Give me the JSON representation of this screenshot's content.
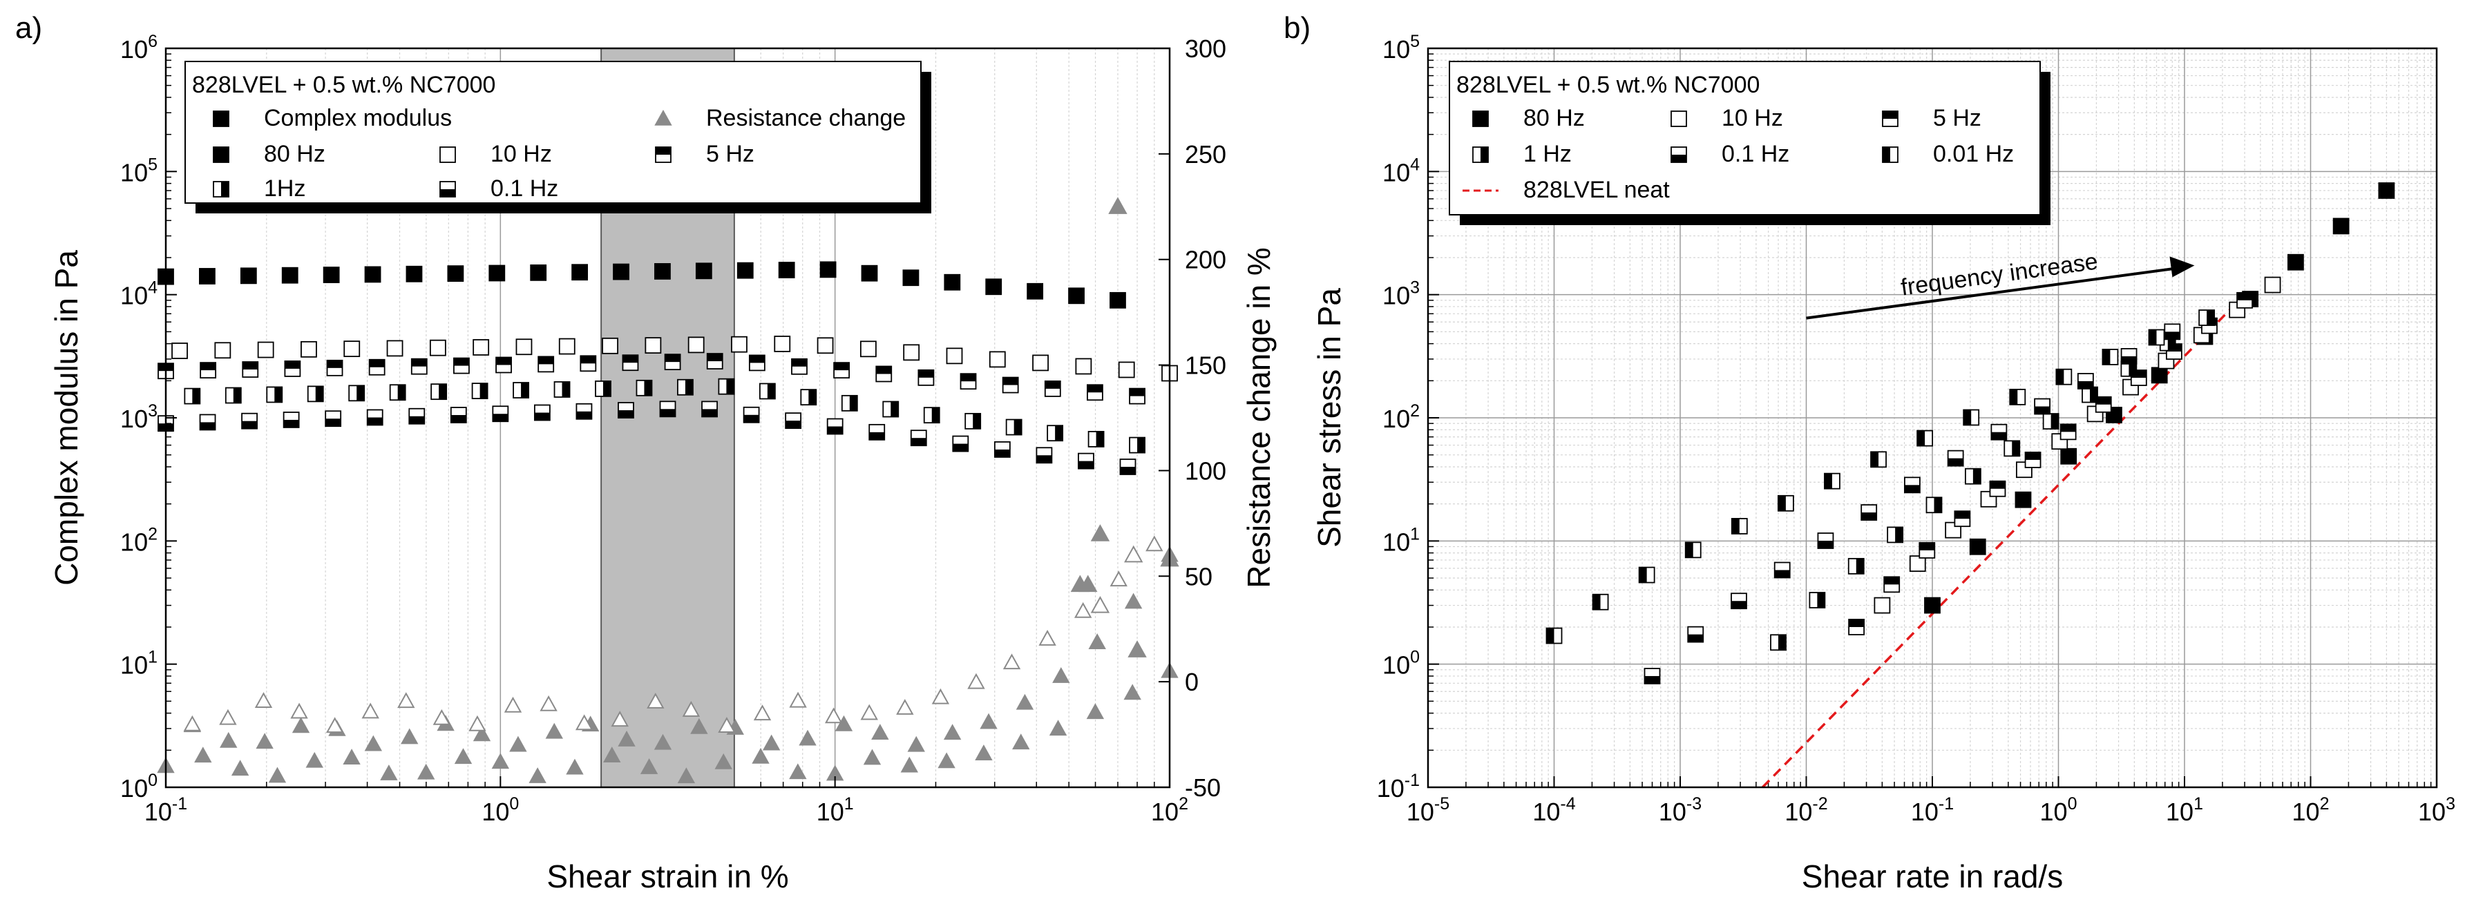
{
  "figure": {
    "panel_a_label": "a)",
    "panel_b_label": "b)"
  },
  "chart_data": [
    {
      "id": "a",
      "type": "scatter",
      "xscale": "log",
      "yscale": "log",
      "y2scale": "linear",
      "xlabel": "Shear strain in %",
      "ylabel": "Complex modulus in Pa",
      "y2label": "Resistance change in %",
      "xlim": [
        0.1,
        100
      ],
      "ylim": [
        1,
        1000000
      ],
      "y2lim": [
        -50,
        300
      ],
      "x_ticks": [
        {
          "v": 0.1,
          "b": "10",
          "e": "-1"
        },
        {
          "v": 1,
          "b": "10",
          "e": "0"
        },
        {
          "v": 10,
          "b": "10",
          "e": "1"
        },
        {
          "v": 100,
          "b": "10",
          "e": "2"
        }
      ],
      "y_ticks": [
        {
          "v": 1,
          "b": "10",
          "e": "0"
        },
        {
          "v": 10,
          "b": "10",
          "e": "1"
        },
        {
          "v": 100,
          "b": "10",
          "e": "2"
        },
        {
          "v": 1000,
          "b": "10",
          "e": "3"
        },
        {
          "v": 10000,
          "b": "10",
          "e": "4"
        },
        {
          "v": 100000,
          "b": "10",
          "e": "5"
        },
        {
          "v": 1000000,
          "b": "10",
          "e": "6"
        }
      ],
      "y2_ticks": [
        {
          "v": -50,
          "t": "-50"
        },
        {
          "v": 0,
          "t": "0"
        },
        {
          "v": 50,
          "t": "50"
        },
        {
          "v": 100,
          "t": "100"
        },
        {
          "v": 150,
          "t": "150"
        },
        {
          "v": 200,
          "t": "200"
        },
        {
          "v": 250,
          "t": "250"
        },
        {
          "v": 300,
          "t": "300"
        }
      ],
      "shaded_region": [
        2,
        5
      ],
      "legend": {
        "title": "828LVEL + 0.5 wt.% NC7000",
        "entries": [
          {
            "label": "Complex modulus",
            "marker": "full"
          },
          {
            "label": "Resistance change",
            "marker": "tri"
          },
          {
            "label": "80 Hz",
            "marker": "full"
          },
          {
            "label": "10 Hz",
            "marker": "open"
          },
          {
            "label": "5 Hz",
            "marker": "top"
          },
          {
            "label": "1Hz",
            "marker": "right"
          },
          {
            "label": "0.1 Hz",
            "marker": "bottom"
          }
        ]
      },
      "modulus_series": [
        {
          "name": "80 Hz",
          "marker": "full",
          "x_start": 0.1,
          "x_end": 70,
          "start": 14000,
          "mid": 16000,
          "end": 9000,
          "dec_start": 10
        },
        {
          "name": "10 Hz",
          "marker": "open",
          "x_start": 0.11,
          "x_end": 100,
          "start": 3500,
          "mid": 4000,
          "end": 2300,
          "dec_start": 8
        },
        {
          "name": "5 Hz",
          "marker": "top",
          "x_start": 0.1,
          "x_end": 80,
          "start": 2400,
          "mid": 2900,
          "end": 1500,
          "dec_start": 5
        },
        {
          "name": "1Hz",
          "marker": "right",
          "x_start": 0.12,
          "x_end": 80,
          "start": 1500,
          "mid": 1800,
          "end": 600,
          "dec_start": 5
        },
        {
          "name": "0.1 Hz",
          "marker": "bottom",
          "x_start": 0.1,
          "x_end": 75,
          "start": 900,
          "mid": 1200,
          "end": 400,
          "dec_start": 4
        }
      ],
      "resistance_series": [
        {
          "name": "Resistance change (filled)",
          "marker": "tri",
          "x_start": 0.1,
          "x_end": 100,
          "base": -40,
          "onset": 15,
          "end": 5,
          "amp": 5
        },
        {
          "name": "Resistance change (filled, high)",
          "marker": "tri",
          "x_start": 0.12,
          "x_end": 100,
          "base": -25,
          "onset": 20,
          "end": 60,
          "amp": 5
        },
        {
          "name": "Resistance change (open)",
          "marker": "tri-open",
          "x_start": 0.12,
          "x_end": 90,
          "base": -15,
          "onset": 12,
          "end": 65,
          "amp": 6
        }
      ],
      "resistance_highlights": [
        {
          "x": 70,
          "y": 225,
          "marker": "tri"
        },
        {
          "x": 62,
          "y": 70,
          "marker": "tri"
        },
        {
          "x": 78,
          "y": 60,
          "marker": "tri-open"
        },
        {
          "x": 54,
          "y": 46,
          "marker": "tri"
        },
        {
          "x": 57,
          "y": 46,
          "marker": "tri"
        },
        {
          "x": 62,
          "y": 36,
          "marker": "tri-open"
        },
        {
          "x": 100,
          "y": 58,
          "marker": "tri"
        },
        {
          "x": 80,
          "y": 15,
          "marker": "tri"
        }
      ]
    },
    {
      "id": "b",
      "type": "scatter",
      "xscale": "log",
      "yscale": "log",
      "xlabel": "Shear rate in rad/s",
      "ylabel": "Shear stress in Pa",
      "xlim": [
        1e-05,
        1000
      ],
      "ylim": [
        0.1,
        100000
      ],
      "x_ticks": [
        {
          "v": 1e-05,
          "b": "10",
          "e": "-5"
        },
        {
          "v": 0.0001,
          "b": "10",
          "e": "-4"
        },
        {
          "v": 0.001,
          "b": "10",
          "e": "-3"
        },
        {
          "v": 0.01,
          "b": "10",
          "e": "-2"
        },
        {
          "v": 0.1,
          "b": "10",
          "e": "-1"
        },
        {
          "v": 1,
          "b": "10",
          "e": "0"
        },
        {
          "v": 10,
          "b": "10",
          "e": "1"
        },
        {
          "v": 100,
          "b": "10",
          "e": "2"
        },
        {
          "v": 1000,
          "b": "10",
          "e": "3"
        }
      ],
      "y_ticks": [
        {
          "v": 0.1,
          "b": "10",
          "e": "-1"
        },
        {
          "v": 1,
          "b": "10",
          "e": "0"
        },
        {
          "v": 10,
          "b": "10",
          "e": "1"
        },
        {
          "v": 100,
          "b": "10",
          "e": "2"
        },
        {
          "v": 1000,
          "b": "10",
          "e": "3"
        },
        {
          "v": 10000,
          "b": "10",
          "e": "4"
        },
        {
          "v": 100000,
          "b": "10",
          "e": "5"
        }
      ],
      "legend": {
        "title": "828LVEL + 0.5 wt.% NC7000",
        "entries": [
          {
            "label": "80 Hz",
            "marker": "full"
          },
          {
            "label": "10 Hz",
            "marker": "open"
          },
          {
            "label": "5 Hz",
            "marker": "top"
          },
          {
            "label": "1 Hz",
            "marker": "right"
          },
          {
            "label": "0.1 Hz",
            "marker": "bottom"
          },
          {
            "label": "0.01 Hz",
            "marker": "left"
          },
          {
            "label": "828LVEL neat",
            "marker": "dash"
          }
        ]
      },
      "annotation": {
        "text": "frequency increase",
        "arrow_from": [
          0.01,
          1400
        ],
        "arrow_to": [
          12,
          1250
        ]
      },
      "neat_line": {
        "x": [
          0.0045,
          30
        ],
        "y": [
          0.1,
          1000
        ],
        "color": "#e31a1c"
      },
      "series": [
        {
          "name": "80 Hz",
          "marker": "full",
          "x_start": 0.1,
          "x_end": 400,
          "y_start": 3,
          "y_end": 7000,
          "n": 11
        },
        {
          "name": "10 Hz",
          "marker": "open",
          "x_start": 0.04,
          "x_end": 50,
          "y_start": 3,
          "y_end": 1200,
          "n": 12
        },
        {
          "name": "5 Hz",
          "marker": "top",
          "x_start": 0.025,
          "x_end": 30,
          "y_start": 2,
          "y_end": 900,
          "n": 12
        },
        {
          "name": "1 Hz",
          "marker": "right",
          "x_start": 0.006,
          "x_end": 15,
          "y_start": 1.5,
          "y_end": 650,
          "n": 12
        },
        {
          "name": "0.1 Hz",
          "marker": "bottom",
          "x_start": 0.0006,
          "x_end": 8,
          "y_start": 0.8,
          "y_end": 500,
          "n": 13
        },
        {
          "name": "0.01 Hz",
          "marker": "left",
          "x_start": 0.0001,
          "x_end": 6,
          "y_start": 1.7,
          "y_end": 450,
          "n": 14
        }
      ]
    }
  ]
}
